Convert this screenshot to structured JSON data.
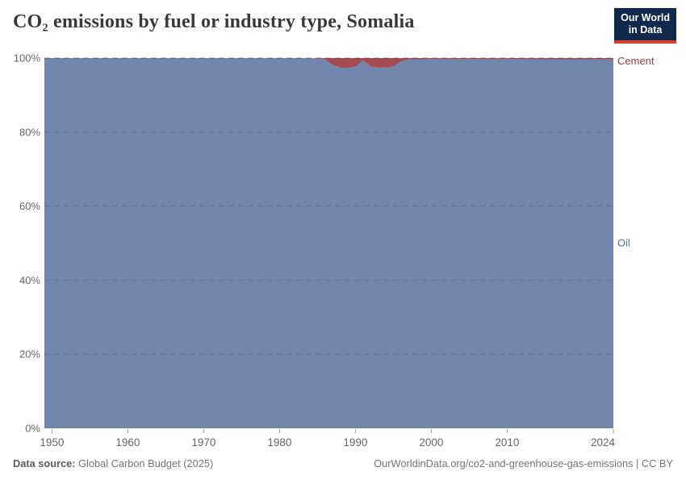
{
  "header": {
    "title": "CO₂ emissions by fuel or industry type, Somalia",
    "logo": {
      "line1": "Our World",
      "line2": "in Data"
    }
  },
  "chart_data": {
    "type": "area",
    "stacked": true,
    "title": "CO₂ emissions by fuel or industry type, Somalia",
    "unit": "%",
    "x_range": [
      1949,
      2024
    ],
    "y_range": [
      0,
      100
    ],
    "x_ticks": [
      1950,
      1960,
      1970,
      1980,
      1990,
      2000,
      2010,
      2024
    ],
    "y_ticks": [
      0,
      20,
      40,
      60,
      80,
      100
    ],
    "grid": "dashed-horizontal",
    "legend_position": "right-edge-labels",
    "series": [
      {
        "name": "Oil",
        "color": "#7286ac",
        "label_color": "#54719f",
        "label_at_percent": 50,
        "points": [
          [
            1949,
            100
          ],
          [
            1984,
            100
          ],
          [
            1985,
            99.9
          ],
          [
            1986,
            99.6
          ],
          [
            1987,
            98.2
          ],
          [
            1988,
            97.4
          ],
          [
            1989,
            97.3
          ],
          [
            1990,
            97.7
          ],
          [
            1991,
            99.4
          ],
          [
            1992,
            97.8
          ],
          [
            1993,
            97.4
          ],
          [
            1994,
            97.4
          ],
          [
            1995,
            97.7
          ],
          [
            1996,
            99.1
          ],
          [
            1997,
            99.65
          ],
          [
            2000,
            99.7
          ],
          [
            2010,
            99.7
          ],
          [
            2024,
            99.65
          ]
        ]
      },
      {
        "name": "Cement",
        "color": "#a34b50",
        "label_color": "#8d3c44",
        "label_at_percent": 100,
        "points": [
          [
            1949,
            0
          ],
          [
            1984,
            0
          ],
          [
            1985,
            0.1
          ],
          [
            1986,
            0.4
          ],
          [
            1987,
            1.8
          ],
          [
            1988,
            2.6
          ],
          [
            1989,
            2.7
          ],
          [
            1990,
            2.3
          ],
          [
            1991,
            0.6
          ],
          [
            1992,
            2.2
          ],
          [
            1993,
            2.6
          ],
          [
            1994,
            2.6
          ],
          [
            1995,
            2.3
          ],
          [
            1996,
            0.9
          ],
          [
            1997,
            0.35
          ],
          [
            2000,
            0.3
          ],
          [
            2010,
            0.3
          ],
          [
            2024,
            0.35
          ]
        ]
      }
    ]
  },
  "footer": {
    "data_source_label": "Data source:",
    "data_source_value": "Global Carbon Budget (2025)",
    "link_text": "OurWorldinData.org/co2-and-greenhouse-gas-emissions | CC BY"
  },
  "colors": {
    "oil": "#7286ac",
    "cement": "#a34b50",
    "oil_label": "#54719f",
    "cement_label": "#8d3c44",
    "logo_bg": "#12294d",
    "logo_stripe": "#d63f2e",
    "title_text": "#383838",
    "axis_text": "#666666",
    "grid_line": "rgba(30,45,70,0.22)",
    "footer_text": "#757575"
  }
}
